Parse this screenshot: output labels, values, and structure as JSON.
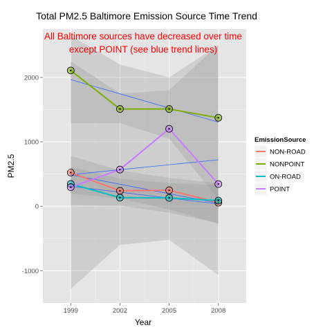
{
  "chart_data": {
    "type": "line",
    "title": "Total PM2.5 Baltimore Emission Source Time Trend",
    "annotation": [
      "All Baltimore sources have decreased over time",
      "except POINT (see blue trend lines)"
    ],
    "xlabel": "Year",
    "ylabel": "PM2.5",
    "x": [
      1999,
      2002,
      2005,
      2008
    ],
    "xlim": [
      1997.3,
      2009.7
    ],
    "ylim": [
      -1500,
      2750
    ],
    "yticks": [
      -1000,
      0,
      1000,
      2000
    ],
    "grid": true,
    "legend": {
      "title": "EmissionSource",
      "position": "right"
    },
    "series": [
      {
        "name": "NON-ROAD",
        "color": "#f8766d",
        "values": [
          522.9,
          240.8,
          248.9,
          55.8
        ],
        "trend": [
          489,
          342,
          195,
          48
        ],
        "band_upper": [
          780,
          560,
          440,
          360
        ],
        "band_lower": [
          200,
          120,
          -50,
          -270
        ]
      },
      {
        "name": "NONPOINT",
        "color": "#7cae00",
        "values": [
          2107.6,
          1509.5,
          1509.5,
          1373.2
        ],
        "trend": [
          1965,
          1745,
          1525,
          1305
        ],
        "band_upper": [
          2650,
          2200,
          2000,
          2500
        ],
        "band_lower": [
          1290,
          1290,
          1050,
          110
        ]
      },
      {
        "name": "ON-ROAD",
        "color": "#00bfc4",
        "values": [
          346.8,
          134.3,
          130.4,
          88.3
        ],
        "trend": [
          310,
          218,
          127,
          36
        ],
        "band_upper": [
          610,
          430,
          360,
          330
        ],
        "band_lower": [
          20,
          10,
          -100,
          -260
        ]
      },
      {
        "name": "POINT",
        "color": "#c77cff",
        "values": [
          296.8,
          569.3,
          1202.5,
          344.98
        ],
        "trend": [
          490,
          568,
          645,
          722
        ],
        "band_upper": [
          2250,
          1750,
          1800,
          2510
        ],
        "band_lower": [
          -1280,
          -600,
          -520,
          -1070
        ]
      }
    ]
  }
}
